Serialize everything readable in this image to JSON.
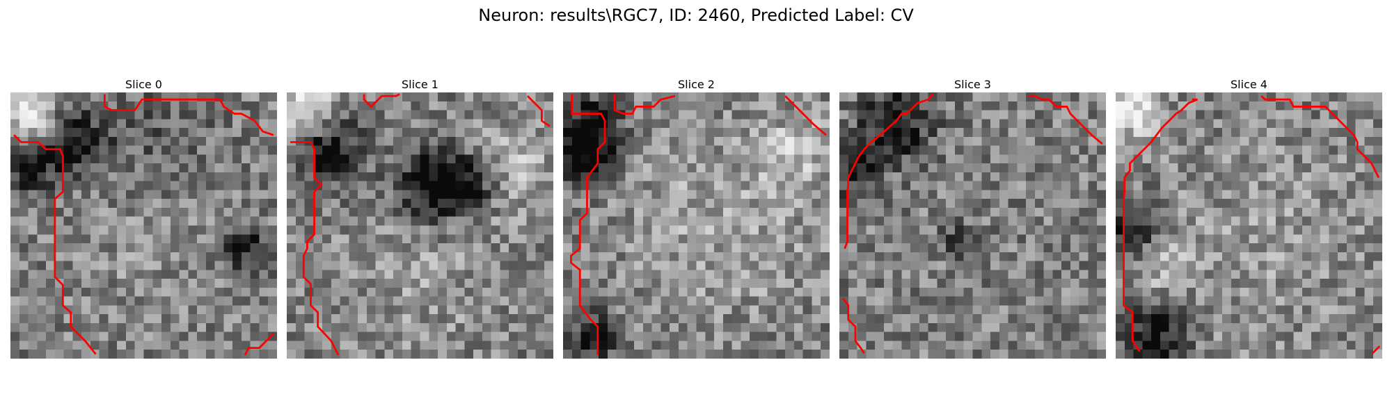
{
  "figure": {
    "title": "Neuron: results\\RGC7, ID: 2460, Predicted Label: CV"
  },
  "slices": [
    {
      "title": "Slice 0"
    },
    {
      "title": "Slice 1"
    },
    {
      "title": "Slice 2"
    },
    {
      "title": "Slice 3"
    },
    {
      "title": "Slice 4"
    }
  ],
  "colors": {
    "contour": "#ff0000",
    "background": "#ffffff"
  }
}
